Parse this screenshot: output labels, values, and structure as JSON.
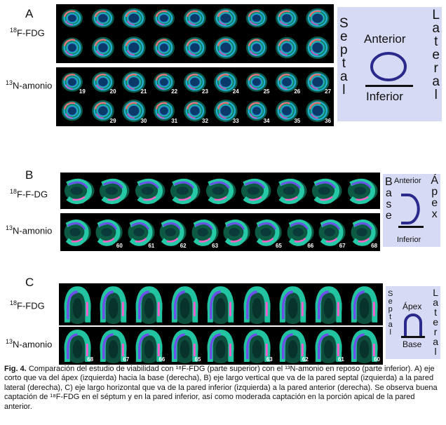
{
  "panels": {
    "A": {
      "letter": "A",
      "row1_label": "F-FDG",
      "row1_sup": "18",
      "row2_label": "N-amonio",
      "row2_sup": "13",
      "row2a_numbers": [
        "19",
        "20",
        "21",
        "22",
        "23",
        "24",
        "25",
        "26",
        "27"
      ],
      "row2b_numbers": [
        "",
        "29",
        "30",
        "31",
        "32",
        "33",
        "34",
        "35",
        "36"
      ],
      "legend": {
        "left": "Septal",
        "right": "Lateral",
        "top": "Anterior",
        "bottom": "Inferior"
      }
    },
    "B": {
      "letter": "B",
      "row1_label": "F-F-DG",
      "row1_sup": "18",
      "row2_label": "N-amonio",
      "row2_sup": "13",
      "row2_numbers": [
        "",
        "60",
        "61",
        "62",
        "63",
        "",
        "65",
        "66",
        "67",
        "68"
      ],
      "legend": {
        "left": "Base",
        "right": "Ápex",
        "top": "Anterior",
        "bottom": "Inferior"
      }
    },
    "C": {
      "letter": "C",
      "row1_label": "F-FDG",
      "row1_sup": "18",
      "row2_label": "N-amonio",
      "row2_sup": "13",
      "row2_numbers": [
        "68",
        "67",
        "66",
        "65",
        "",
        "63",
        "62",
        "61",
        "60"
      ],
      "legend": {
        "left": "Septal",
        "right": "Lateral",
        "top": "Ápex",
        "bottom": "Base"
      }
    }
  },
  "caption": {
    "fig": "Fig. 4.",
    "text": "Comparación del estudio de viabilidad con ¹⁸F-FDG (parte superior) con el ¹³N-amonio en reposo (parte inferior). A) eje corto que va del ápex (izquierda) hacia la base (derecha), B) eje largo vertical que va de la pared septal (izquierda) a la pared lateral (derecha), C) eje largo horizontal que va de la pared inferior (izquierda) a la pared anterior (derecha). Se observa buena captación de ¹⁸F-FDG en el séptum y en la pared inferior, así como moderada captación en la porción apical de la pared anterior."
  },
  "colors": {
    "legend_bg": "#d6daf4",
    "legend_ink": "#2a2a8c"
  }
}
